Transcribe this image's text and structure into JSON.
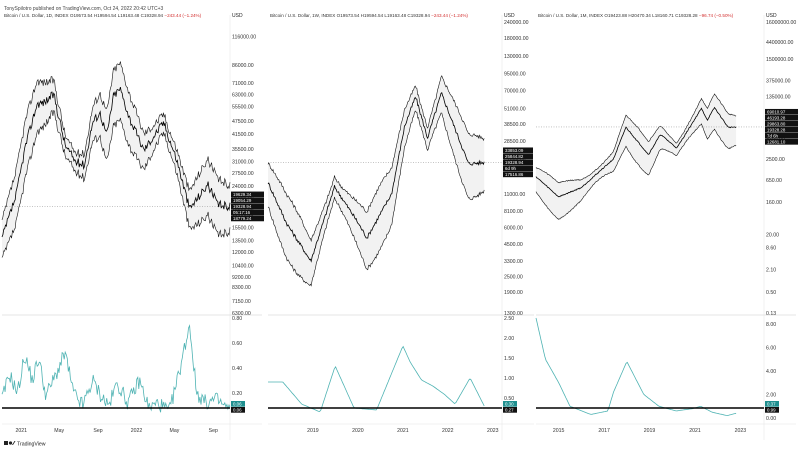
{
  "published_by": "TonySpilotro published on TradingView.com, Oct 24, 2022 20:42 UTC+3",
  "footer": {
    "brand": "TradingView"
  },
  "colors": {
    "price": "#000000",
    "band": "#111111",
    "fill": "#f2f2f2",
    "indicator": "#4fb3b3",
    "baseline": "#000000",
    "label_dark": "#111111",
    "label_teal": "#1f8f8f",
    "header_change": "#d32f2f",
    "dotted": "#888888"
  },
  "chart_data": [
    {
      "type": "line",
      "header": "Bitcoin / U.S. Dollar, 1D, INDEX",
      "ohlc": "O19573.54  H19594.54  L19163.48  C19328.94",
      "change": "−243.44 (−1.24%)",
      "currency": "USD",
      "x_labels": [
        "2021",
        "May",
        "Sep",
        "2022",
        "May",
        "Sep"
      ],
      "x_domain": [
        "2020-11-01",
        "2022-10-24"
      ],
      "price_axis": {
        "scale": "log",
        "ylim": [
          6300,
          135000
        ],
        "ticks": [
          116000,
          86000,
          71000,
          63000,
          55500,
          47500,
          41500,
          35500,
          31000,
          27500,
          24000,
          21000,
          19000,
          18000,
          15500,
          13500,
          12000,
          10400,
          9200,
          8300,
          7150,
          6300
        ]
      },
      "price_labels": [
        "19629.34",
        "19054.29",
        "19328.94",
        "05:17:16",
        "18779.24"
      ],
      "price_series": {
        "x": [
          "2020-11-01",
          "2020-12-15",
          "2021-01-15",
          "2021-02-20",
          "2021-03-15",
          "2021-04-14",
          "2021-05-20",
          "2021-06-22",
          "2021-07-20",
          "2021-08-15",
          "2021-09-07",
          "2021-09-29",
          "2021-10-20",
          "2021-11-10",
          "2021-12-10",
          "2022-01-24",
          "2022-03-28",
          "2022-05-10",
          "2022-06-18",
          "2022-08-15",
          "2022-09-15",
          "2022-10-24"
        ],
        "close": [
          13800,
          21500,
          37000,
          57000,
          58000,
          63000,
          37000,
          31000,
          30000,
          47000,
          52000,
          41000,
          62000,
          67000,
          49000,
          35000,
          47000,
          31000,
          18900,
          24400,
          19700,
          19328
        ]
      },
      "indicator_axis": {
        "ylim": [
          0,
          0.8
        ],
        "ticks": [
          0.8,
          0.6,
          0.4,
          0.2
        ]
      },
      "indicator_labels": [
        "0.06",
        "0.06"
      ],
      "indicator_series": {
        "x": [
          "2020-11-01",
          "2020-11-25",
          "2020-12-20",
          "2021-01-12",
          "2021-02-05",
          "2021-02-25",
          "2021-03-20",
          "2021-04-18",
          "2021-05-20",
          "2021-06-15",
          "2021-07-15",
          "2021-08-15",
          "2021-09-10",
          "2021-10-05",
          "2021-11-01",
          "2021-12-05",
          "2022-01-10",
          "2022-02-10",
          "2022-03-10",
          "2022-04-15",
          "2022-05-12",
          "2022-06-18",
          "2022-07-10",
          "2022-08-10",
          "2022-09-10",
          "2022-10-24"
        ],
        "values": [
          0.15,
          0.35,
          0.2,
          0.5,
          0.3,
          0.48,
          0.18,
          0.33,
          0.52,
          0.2,
          0.1,
          0.3,
          0.18,
          0.1,
          0.28,
          0.12,
          0.3,
          0.08,
          0.12,
          0.05,
          0.32,
          0.75,
          0.2,
          0.12,
          0.15,
          0.06
        ]
      }
    },
    {
      "type": "line",
      "header": "Bitcoin / U.S. Dollar, 1W, INDEX",
      "ohlc": "O19573.54  H19594.54  L19163.48  C19328.94",
      "change": "−243.44 (−1.24%)",
      "currency": "USD",
      "x_labels": [
        "2019",
        "2020",
        "2021",
        "2022",
        "2023"
      ],
      "x_domain": [
        "2018-01-01",
        "2023-03-01"
      ],
      "price_axis": {
        "scale": "log",
        "ylim": [
          1300,
          240000
        ],
        "ticks": [
          240000,
          180000,
          130000,
          95000,
          70000,
          51000,
          38500,
          28500,
          21000,
          15500,
          11000,
          8100,
          6000,
          4500,
          3300,
          2500,
          1900,
          1300
        ]
      },
      "price_labels": [
        "33853.09",
        "25844.82",
        "19328.94",
        "6d 9h",
        "17516.86"
      ],
      "price_series": {
        "x": [
          "2018-01-01",
          "2018-06-01",
          "2018-12-15",
          "2019-06-26",
          "2019-12-15",
          "2020-03-15",
          "2020-10-01",
          "2021-01-15",
          "2021-04-14",
          "2021-07-20",
          "2021-11-10",
          "2022-06-18",
          "2022-10-24"
        ],
        "close": [
          13500,
          6500,
          3300,
          12500,
          7000,
          5000,
          11000,
          37000,
          63000,
          30000,
          67000,
          18900,
          19328
        ]
      },
      "indicator_axis": {
        "ylim": [
          0,
          2.5
        ],
        "ticks": [
          2.5,
          2.0,
          1.5,
          1.0,
          0.5
        ]
      },
      "indicator_labels": [
        "0.30",
        "0.27"
      ],
      "indicator_series": {
        "x": [
          "2018-01-01",
          "2018-05-01",
          "2018-10-01",
          "2019-03-01",
          "2019-07-01",
          "2019-12-01",
          "2020-06-01",
          "2021-01-01",
          "2021-03-01",
          "2021-06-01",
          "2021-09-01",
          "2021-12-01",
          "2022-03-01",
          "2022-07-01",
          "2022-10-24"
        ],
        "values": [
          0.9,
          0.9,
          0.35,
          0.15,
          1.3,
          0.25,
          0.2,
          1.8,
          1.4,
          0.95,
          0.8,
          0.6,
          0.35,
          1.0,
          0.3
        ]
      }
    },
    {
      "type": "line",
      "header": "Bitcoin / U.S. Dollar, 1M, INDEX",
      "ohlc": "O19423.88  H20470.34  L18160.71  C19328.28",
      "change": "−96.74 (−0.50%)",
      "currency": "USD",
      "x_labels": [
        "2015",
        "2017",
        "2019",
        "2021",
        "2023"
      ],
      "x_domain": [
        "2014-01-01",
        "2023-12-31"
      ],
      "price_axis": {
        "scale": "log",
        "ylim": [
          0.13,
          16000000
        ],
        "ticks": [
          16000000,
          4400000,
          1500000,
          375000,
          135000,
          35000,
          9100,
          2500,
          650,
          160,
          20,
          8.6,
          2.1,
          0.5,
          0.13
        ]
      },
      "price_labels": [
        "69010.97",
        "46193.28",
        "29863.80",
        "19328.28",
        "7d 6h",
        "12681.10"
      ],
      "price_series": {
        "x": [
          "2014-01-01",
          "2015-01-01",
          "2016-01-01",
          "2017-06-01",
          "2017-12-17",
          "2018-12-15",
          "2019-06-26",
          "2020-03-15",
          "2021-04-14",
          "2021-07-20",
          "2021-11-10",
          "2022-06-18",
          "2022-10-24"
        ],
        "close": [
          800,
          220,
          400,
          2500,
          19000,
          3300,
          12000,
          5000,
          63000,
          30000,
          67000,
          18900,
          19328
        ]
      },
      "indicator_axis": {
        "ylim": [
          0,
          8.5
        ],
        "ticks": [
          8.0,
          6.0,
          4.0,
          2.0,
          0.0
        ]
      },
      "indicator_labels": [
        "0.37",
        "0.99"
      ],
      "indicator_series": {
        "x": [
          "2014-01-01",
          "2014-06-01",
          "2015-01-01",
          "2015-07-01",
          "2016-06-01",
          "2017-03-01",
          "2017-06-01",
          "2018-01-01",
          "2018-10-01",
          "2019-06-01",
          "2020-03-01",
          "2020-12-01",
          "2021-04-01",
          "2021-10-01",
          "2022-06-01",
          "2022-10-24"
        ],
        "values": [
          8.5,
          5.0,
          3.0,
          1.0,
          0.3,
          0.6,
          2.2,
          4.8,
          2.0,
          1.0,
          0.6,
          0.8,
          1.0,
          0.5,
          0.2,
          0.4
        ]
      }
    }
  ]
}
